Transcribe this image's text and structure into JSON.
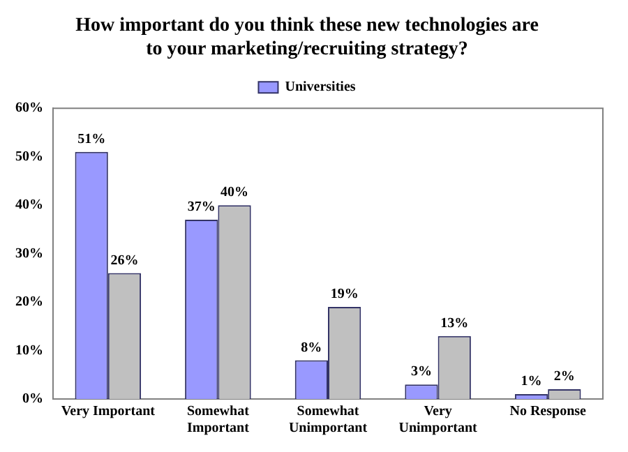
{
  "chart_data": {
    "type": "bar",
    "title": "How important do you think these new technologies are to your marketing/recruiting strategy?",
    "categories": [
      "Very Important",
      "Somewhat Important",
      "Somewhat Unimportant",
      "Very Unimportant",
      "No Response"
    ],
    "series": [
      {
        "name": "Universities",
        "color": "#9999ff",
        "values": [
          51,
          37,
          8,
          3,
          1
        ],
        "value_labels": [
          "51%",
          "37%",
          "8%",
          "3%",
          "1%"
        ]
      },
      {
        "color": "#c0c0c0",
        "values": [
          26,
          40,
          19,
          13,
          2
        ],
        "value_labels": [
          "26%",
          "40%",
          "19%",
          "13%",
          "2%"
        ]
      }
    ],
    "ylim": [
      0,
      60
    ],
    "yticks": [
      {
        "value": 0,
        "label": "0%"
      },
      {
        "value": 10,
        "label": "10%"
      },
      {
        "value": 20,
        "label": "20%"
      },
      {
        "value": 30,
        "label": "30%"
      },
      {
        "value": 40,
        "label": "40%"
      },
      {
        "value": 50,
        "label": "50%"
      },
      {
        "value": 60,
        "label": "60%"
      }
    ],
    "grid": false,
    "legend": "top"
  }
}
